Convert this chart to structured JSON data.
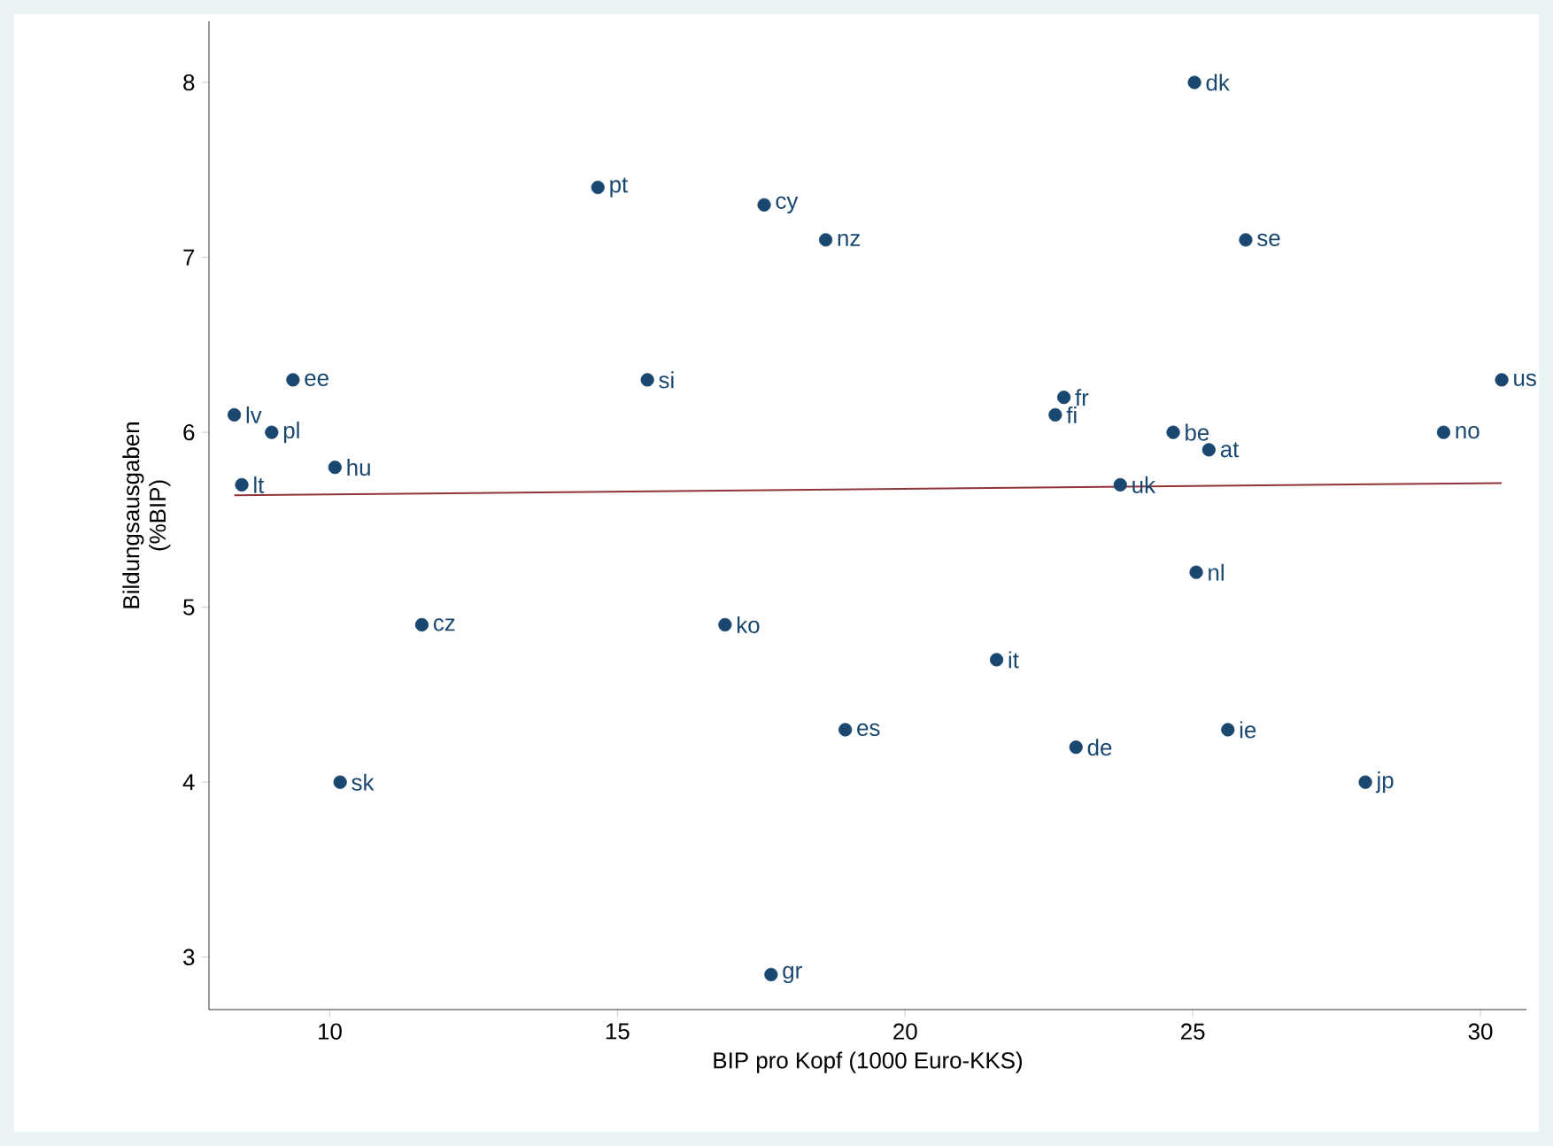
{
  "chart_data": {
    "type": "scatter",
    "xlabel": "BIP pro Kopf (1000 Euro-KKS)",
    "ylabel": "Bildungsausgaben (%BIP)",
    "xlim": [
      7.9,
      30.8
    ],
    "ylim": [
      2.7,
      8.35
    ],
    "xticks": [
      10,
      15,
      20,
      25,
      30
    ],
    "yticks": [
      3,
      4,
      5,
      6,
      7,
      8
    ],
    "grid": false,
    "marker": "circle",
    "series": [
      {
        "color": "#1a476f",
        "x": [
          25.03,
          14.66,
          17.55,
          18.62,
          25.92,
          9.36,
          15.52,
          30.37,
          22.76,
          8.34,
          22.61,
          8.99,
          24.66,
          29.36,
          25.28,
          10.09,
          8.47,
          23.74,
          25.06,
          11.6,
          16.87,
          21.59,
          18.96,
          25.61,
          22.97,
          10.18,
          28.0,
          17.67
        ],
        "values": [
          8.0,
          7.4,
          7.3,
          7.1,
          7.1,
          6.3,
          6.3,
          6.3,
          6.2,
          6.1,
          6.1,
          6.0,
          6.0,
          6.0,
          5.9,
          5.8,
          5.7,
          5.7,
          5.2,
          4.9,
          4.9,
          4.7,
          4.3,
          4.3,
          4.2,
          4.0,
          4.0,
          2.9
        ]
      },
      {
        "type": "line",
        "color": "#90353b",
        "marker": "none",
        "line_style": "solid",
        "x": [
          8.34,
          30.37
        ],
        "values": [
          5.64,
          5.71
        ]
      }
    ],
    "annotations": [
      {
        "text": "dk",
        "x": 25.03,
        "y": 8.0
      },
      {
        "text": "pt",
        "x": 14.66,
        "y": 7.4
      },
      {
        "text": "cy",
        "x": 17.55,
        "y": 7.3
      },
      {
        "text": "nz",
        "x": 18.62,
        "y": 7.1
      },
      {
        "text": "se",
        "x": 25.92,
        "y": 7.1
      },
      {
        "text": "ee",
        "x": 9.36,
        "y": 6.3
      },
      {
        "text": "si",
        "x": 15.52,
        "y": 6.3
      },
      {
        "text": "us",
        "x": 30.37,
        "y": 6.3
      },
      {
        "text": "fr",
        "x": 22.76,
        "y": 6.2
      },
      {
        "text": "lv",
        "x": 8.34,
        "y": 6.1
      },
      {
        "text": "fi",
        "x": 22.61,
        "y": 6.1
      },
      {
        "text": "pl",
        "x": 8.99,
        "y": 6.0
      },
      {
        "text": "be",
        "x": 24.66,
        "y": 6.0
      },
      {
        "text": "no",
        "x": 29.36,
        "y": 6.0
      },
      {
        "text": "at",
        "x": 25.28,
        "y": 5.9
      },
      {
        "text": "hu",
        "x": 10.09,
        "y": 5.8
      },
      {
        "text": "lt",
        "x": 8.47,
        "y": 5.7
      },
      {
        "text": "uk",
        "x": 23.74,
        "y": 5.7
      },
      {
        "text": "nl",
        "x": 25.06,
        "y": 5.2
      },
      {
        "text": "cz",
        "x": 11.6,
        "y": 4.9
      },
      {
        "text": "ko",
        "x": 16.87,
        "y": 4.9
      },
      {
        "text": "it",
        "x": 21.59,
        "y": 4.7
      },
      {
        "text": "es",
        "x": 18.96,
        "y": 4.3
      },
      {
        "text": "ie",
        "x": 25.61,
        "y": 4.3
      },
      {
        "text": "de",
        "x": 22.97,
        "y": 4.2
      },
      {
        "text": "sk",
        "x": 10.18,
        "y": 4.0
      },
      {
        "text": "jp",
        "x": 28.0,
        "y": 4.0
      },
      {
        "text": "gr",
        "x": 17.67,
        "y": 2.9
      }
    ]
  }
}
